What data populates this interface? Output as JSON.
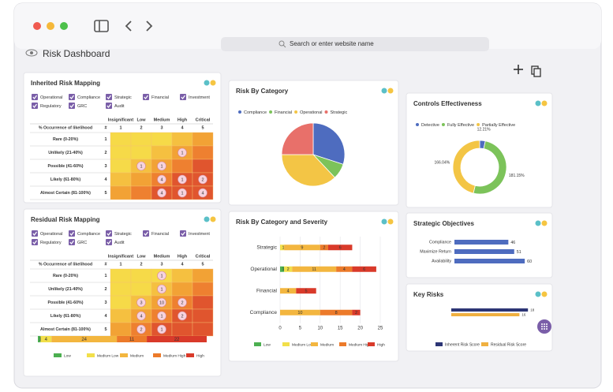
{
  "browser": {
    "address_placeholder": "Search or enter website name"
  },
  "header": {
    "title": "Risk Dashboard"
  },
  "inherited_risk": {
    "title": "Inherited Risk Mapping",
    "filters": [
      "Operational",
      "Compliance",
      "Strategic",
      "Financial",
      "Investment",
      "Regulatory",
      "GRC",
      "Audit"
    ],
    "matrix": {
      "corner_label": "% Occurrence of likelihood",
      "number_label": "#",
      "columns": [
        "Insignificant",
        "Low",
        "Medium",
        "High",
        "Critical"
      ],
      "column_numbers": [
        1,
        2,
        3,
        4,
        5
      ],
      "rows": [
        "Rare (0-20%)",
        "Unlikely (21-40%)",
        "Possible (41-60%)",
        "Likely (61-80%)",
        "Almost Certain (81-100%)"
      ],
      "row_numbers": [
        1,
        2,
        3,
        4,
        5
      ],
      "cells": [
        [
          null,
          null,
          null,
          null,
          null
        ],
        [
          null,
          null,
          null,
          1,
          null
        ],
        [
          null,
          1,
          1,
          null,
          null
        ],
        [
          null,
          null,
          4,
          1,
          2
        ],
        [
          null,
          null,
          4,
          1,
          4
        ]
      ]
    }
  },
  "residual_risk": {
    "title": "Residual Risk Mapping",
    "filters": [
      "Operational",
      "Compliance",
      "Strategic",
      "Financial",
      "Investment",
      "Regulatory",
      "GRC",
      "Audit"
    ],
    "matrix": {
      "corner_label": "% Occurrence of likelihood",
      "number_label": "#",
      "columns": [
        "Insignificant",
        "Low",
        "Medium",
        "High",
        "Critical"
      ],
      "column_numbers": [
        1,
        2,
        3,
        4,
        5
      ],
      "rows": [
        "Rare (0-20%)",
        "Unlikely (21-40%)",
        "Possible (41-60%)",
        "Likely (61-80%)",
        "Almost Certain (81-100%)"
      ],
      "row_numbers": [
        1,
        2,
        3,
        4,
        5
      ],
      "cells": [
        [
          null,
          null,
          1,
          null,
          null
        ],
        [
          null,
          null,
          1,
          null,
          null
        ],
        [
          null,
          3,
          10,
          2,
          null
        ],
        [
          null,
          4,
          1,
          2,
          null
        ],
        [
          null,
          2,
          1,
          null,
          null
        ]
      ]
    },
    "summary": {
      "type": "stacked-bar",
      "series": [
        {
          "name": "Low",
          "color": "#4caf50",
          "values": [
            1
          ]
        },
        {
          "name": "Medium Low",
          "color": "#f2df4a",
          "values": [
            4
          ]
        },
        {
          "name": "Medium",
          "color": "#f3b63f",
          "values": [
            24
          ]
        },
        {
          "name": "Medium High",
          "color": "#ec7a2a",
          "values": [
            11
          ]
        },
        {
          "name": "High",
          "color": "#d93a2a",
          "values": [
            22
          ]
        }
      ]
    }
  },
  "risk_by_category": {
    "type": "pie",
    "title": "Risk By Category",
    "categories": [
      "Compliance",
      "Financial",
      "Operational",
      "Strategic"
    ],
    "colors": [
      "#4e6cbf",
      "#7cc35a",
      "#f3c545",
      "#e8706a"
    ],
    "values": [
      30,
      8,
      37,
      25
    ]
  },
  "controls_effectiveness": {
    "type": "donut",
    "title": "Controls Effectiveness",
    "categories": [
      "Detective",
      "Fully Effective",
      "Partially Effective"
    ],
    "colors": [
      "#4e6cbf",
      "#7cc35a",
      "#f3c545"
    ],
    "values": [
      12.21,
      181.15,
      166.04
    ],
    "value_labels": [
      "12.21%",
      "181.15%",
      "166.04%"
    ]
  },
  "risk_by_severity": {
    "type": "stacked-bar",
    "title": "Risk By Category and Severity",
    "categories": [
      "Strategic",
      "Operational",
      "Financial",
      "Compliance"
    ],
    "series": [
      {
        "name": "Low",
        "color": "#4caf50",
        "values": [
          null,
          1,
          null,
          null
        ]
      },
      {
        "name": "Medium Low",
        "color": "#f2df4a",
        "values": [
          1,
          2,
          null,
          null
        ]
      },
      {
        "name": "Medium",
        "color": "#f3b63f",
        "values": [
          9,
          11,
          4,
          10
        ]
      },
      {
        "name": "Medium High",
        "color": "#ec7a2a",
        "values": [
          2,
          4,
          null,
          8
        ]
      },
      {
        "name": "High",
        "color": "#d93a2a",
        "values": [
          6,
          6,
          5,
          2
        ]
      }
    ],
    "xlim": [
      0,
      25
    ],
    "xticks": [
      0,
      5,
      10,
      15,
      20,
      25
    ],
    "grid": true
  },
  "strategic_objectives": {
    "type": "bar",
    "title": "Strategic Objectives",
    "categories": [
      "Compliance",
      "Maximize Return",
      "Availability"
    ],
    "values": [
      46,
      51,
      60
    ],
    "color": "#4e6cbf",
    "xlim": [
      0,
      70
    ]
  },
  "key_risks": {
    "type": "bar",
    "title": "Key Risks",
    "series": [
      {
        "name": "Inherent Risk Score",
        "color": "#2c3575",
        "values": [
          18
        ]
      },
      {
        "name": "Residual Risk Score",
        "color": "#f0b040",
        "values": [
          16
        ]
      }
    ],
    "xlim": [
      0,
      20
    ]
  }
}
